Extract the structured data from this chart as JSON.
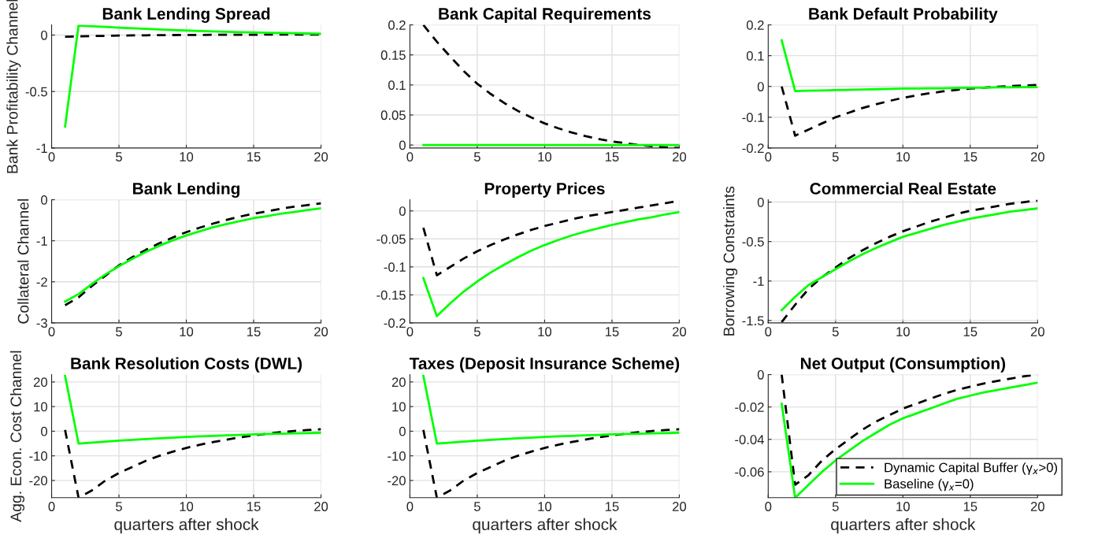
{
  "chart_data": [
    {
      "type": "line",
      "title": "Bank Lending Spread",
      "ylabel": "Bank Profitability Channel",
      "x": [
        1,
        2,
        3,
        4,
        5,
        6,
        7,
        8,
        9,
        10,
        11,
        12,
        13,
        14,
        15,
        16,
        17,
        18,
        19,
        20
      ],
      "xlim": [
        0,
        20
      ],
      "xticks": [
        0,
        5,
        10,
        15,
        20
      ],
      "ylim": [
        -1,
        0.09
      ],
      "yticks": [
        -1,
        -0.5,
        0
      ],
      "grid": true,
      "legend": false,
      "series": [
        {
          "color": "#000000",
          "line_style": "dashed",
          "values": [
            -0.015,
            -0.012,
            -0.009,
            -0.007,
            -0.005,
            -0.003,
            -0.002,
            -0.001,
            0,
            0.001,
            0.001,
            0.002,
            0.002,
            0.003,
            0.003,
            0.004,
            0.004,
            0.004,
            0.005,
            0.005
          ]
        },
        {
          "color": "#00ff00",
          "line_style": "solid",
          "values": [
            -0.81,
            0.085,
            0.078,
            0.072,
            0.066,
            0.06,
            0.055,
            0.05,
            0.045,
            0.04,
            0.036,
            0.032,
            0.029,
            0.026,
            0.023,
            0.02,
            0.018,
            0.016,
            0.014,
            0.012
          ]
        }
      ]
    },
    {
      "type": "line",
      "title": "Bank Capital Requirements",
      "x": [
        1,
        2,
        3,
        4,
        5,
        6,
        7,
        8,
        9,
        10,
        11,
        12,
        13,
        14,
        15,
        16,
        17,
        18,
        19,
        20
      ],
      "xlim": [
        0,
        20
      ],
      "xticks": [
        0,
        5,
        10,
        15,
        20
      ],
      "ylim": [
        -0.005,
        0.2
      ],
      "yticks": [
        0,
        0.05,
        0.1,
        0.15,
        0.2
      ],
      "grid": true,
      "legend": false,
      "series": [
        {
          "color": "#000000",
          "line_style": "dashed",
          "values": [
            0.2,
            0.172,
            0.147,
            0.123,
            0.102,
            0.085,
            0.07,
            0.057,
            0.046,
            0.036,
            0.028,
            0.021,
            0.015,
            0.01,
            0.006,
            0.003,
            0.0,
            -0.002,
            -0.004,
            -0.005
          ]
        },
        {
          "color": "#00ff00",
          "line_style": "solid",
          "values": [
            0,
            0,
            0,
            0,
            0,
            0,
            0,
            0,
            0,
            0,
            0,
            0,
            0,
            0,
            0,
            0,
            0,
            0,
            0,
            0
          ]
        }
      ]
    },
    {
      "type": "line",
      "title": "Bank Default Probability",
      "x": [
        1,
        2,
        3,
        4,
        5,
        6,
        7,
        8,
        9,
        10,
        11,
        12,
        13,
        14,
        15,
        16,
        17,
        18,
        19,
        20
      ],
      "xlim": [
        0,
        20
      ],
      "xticks": [
        0,
        5,
        10,
        15,
        20
      ],
      "ylim": [
        -0.2,
        0.2
      ],
      "yticks": [
        -0.2,
        -0.1,
        0,
        0.1,
        0.2
      ],
      "grid": true,
      "legend": false,
      "series": [
        {
          "color": "#000000",
          "line_style": "dashed",
          "values": [
            0.0,
            -0.16,
            -0.14,
            -0.12,
            -0.1,
            -0.085,
            -0.07,
            -0.058,
            -0.047,
            -0.037,
            -0.029,
            -0.022,
            -0.016,
            -0.011,
            -0.007,
            -0.004,
            -0.001,
            0.001,
            0.003,
            0.005
          ]
        },
        {
          "color": "#00ff00",
          "line_style": "solid",
          "values": [
            0.15,
            -0.015,
            -0.014,
            -0.013,
            -0.012,
            -0.011,
            -0.01,
            -0.009,
            -0.008,
            -0.007,
            -0.007,
            -0.006,
            -0.006,
            -0.005,
            -0.004,
            -0.004,
            -0.003,
            -0.003,
            -0.002,
            -0.002
          ]
        }
      ]
    },
    {
      "type": "line",
      "title": "Bank Lending",
      "ylabel": "Collateral Channel",
      "x": [
        1,
        2,
        3,
        4,
        5,
        6,
        7,
        8,
        9,
        10,
        11,
        12,
        13,
        14,
        15,
        16,
        17,
        18,
        19,
        20
      ],
      "xlim": [
        0,
        20
      ],
      "xticks": [
        0,
        5,
        10,
        15,
        20
      ],
      "ylim": [
        -3,
        0
      ],
      "yticks": [
        -3,
        -2,
        -1,
        0
      ],
      "grid": true,
      "legend": false,
      "series": [
        {
          "color": "#000000",
          "line_style": "dashed",
          "values": [
            -2.57,
            -2.38,
            -2.1,
            -1.85,
            -1.6,
            -1.4,
            -1.22,
            -1.06,
            -0.92,
            -0.79,
            -0.68,
            -0.58,
            -0.49,
            -0.41,
            -0.34,
            -0.28,
            -0.22,
            -0.17,
            -0.13,
            -0.09
          ]
        },
        {
          "color": "#00ff00",
          "line_style": "solid",
          "values": [
            -2.48,
            -2.3,
            -2.05,
            -1.82,
            -1.62,
            -1.44,
            -1.27,
            -1.12,
            -0.99,
            -0.87,
            -0.77,
            -0.67,
            -0.59,
            -0.52,
            -0.45,
            -0.4,
            -0.34,
            -0.3,
            -0.25,
            -0.21
          ]
        }
      ]
    },
    {
      "type": "line",
      "title": "Property Prices",
      "x": [
        1,
        2,
        3,
        4,
        5,
        6,
        7,
        8,
        9,
        10,
        11,
        12,
        13,
        14,
        15,
        16,
        17,
        18,
        19,
        20
      ],
      "xlim": [
        0,
        20
      ],
      "xticks": [
        0,
        5,
        10,
        15,
        20
      ],
      "ylim": [
        -0.2,
        0.02
      ],
      "yticks": [
        -0.2,
        -0.15,
        -0.1,
        -0.05,
        0
      ],
      "grid": true,
      "legend": false,
      "series": [
        {
          "color": "#000000",
          "line_style": "dashed",
          "values": [
            -0.03,
            -0.115,
            -0.1,
            -0.085,
            -0.072,
            -0.061,
            -0.051,
            -0.042,
            -0.034,
            -0.027,
            -0.021,
            -0.015,
            -0.01,
            -0.006,
            -0.002,
            0.002,
            0.006,
            0.01,
            0.014,
            0.018
          ]
        },
        {
          "color": "#00ff00",
          "line_style": "solid",
          "values": [
            -0.12,
            -0.188,
            -0.165,
            -0.144,
            -0.126,
            -0.11,
            -0.096,
            -0.083,
            -0.071,
            -0.061,
            -0.052,
            -0.044,
            -0.037,
            -0.031,
            -0.025,
            -0.02,
            -0.015,
            -0.011,
            -0.006,
            -0.002
          ]
        }
      ]
    },
    {
      "type": "line",
      "title": "Commercial Real Estate",
      "ylabel": "Borrowing Constraints",
      "x": [
        1,
        2,
        3,
        4,
        5,
        6,
        7,
        8,
        9,
        10,
        11,
        12,
        13,
        14,
        15,
        16,
        17,
        18,
        19,
        20
      ],
      "xlim": [
        0,
        20
      ],
      "xticks": [
        0,
        5,
        10,
        15,
        20
      ],
      "ylim": [
        -1.53,
        0.03
      ],
      "yticks": [
        -1.5,
        -1,
        -0.5,
        0
      ],
      "grid": true,
      "legend": false,
      "series": [
        {
          "color": "#000000",
          "line_style": "dashed",
          "values": [
            -1.52,
            -1.3,
            -1.1,
            -0.95,
            -0.83,
            -0.71,
            -0.61,
            -0.52,
            -0.44,
            -0.37,
            -0.31,
            -0.25,
            -0.2,
            -0.15,
            -0.11,
            -0.08,
            -0.05,
            -0.02,
            0.0,
            0.02
          ]
        },
        {
          "color": "#00ff00",
          "line_style": "solid",
          "values": [
            -1.37,
            -1.2,
            -1.05,
            -0.95,
            -0.85,
            -0.75,
            -0.66,
            -0.58,
            -0.51,
            -0.44,
            -0.39,
            -0.34,
            -0.29,
            -0.25,
            -0.21,
            -0.18,
            -0.15,
            -0.12,
            -0.1,
            -0.08
          ]
        }
      ]
    },
    {
      "type": "line",
      "title": "Bank Resolution Costs (DWL)",
      "xlabel": "quarters after shock",
      "ylabel": "Agg. Econ. Cost Channel",
      "x": [
        1,
        2,
        3,
        4,
        5,
        6,
        7,
        8,
        9,
        10,
        11,
        12,
        13,
        14,
        15,
        16,
        17,
        18,
        19,
        20
      ],
      "xlim": [
        0,
        20
      ],
      "xticks": [
        0,
        5,
        10,
        15,
        20
      ],
      "ylim": [
        -27,
        23
      ],
      "yticks": [
        -20,
        -10,
        0,
        10,
        20
      ],
      "grid": true,
      "legend": false,
      "series": [
        {
          "color": "#000000",
          "line_style": "dashed",
          "values": [
            0.5,
            -27,
            -24,
            -20,
            -17,
            -14.5,
            -12,
            -10,
            -8.3,
            -6.8,
            -5.5,
            -4.4,
            -3.4,
            -2.5,
            -1.7,
            -1.0,
            -0.4,
            0.1,
            0.5,
            0.8
          ]
        },
        {
          "color": "#00ff00",
          "line_style": "solid",
          "values": [
            22.5,
            -5,
            -4.6,
            -4.2,
            -3.8,
            -3.5,
            -3.2,
            -2.9,
            -2.6,
            -2.3,
            -2.1,
            -1.9,
            -1.7,
            -1.5,
            -1.3,
            -1.1,
            -1.0,
            -0.9,
            -0.8,
            -0.6
          ]
        }
      ]
    },
    {
      "type": "line",
      "title": "Taxes (Deposit Insurance Scheme)",
      "xlabel": "quarters after shock",
      "x": [
        1,
        2,
        3,
        4,
        5,
        6,
        7,
        8,
        9,
        10,
        11,
        12,
        13,
        14,
        15,
        16,
        17,
        18,
        19,
        20
      ],
      "xlim": [
        0,
        20
      ],
      "xticks": [
        0,
        5,
        10,
        15,
        20
      ],
      "ylim": [
        -27,
        23
      ],
      "yticks": [
        -20,
        -10,
        0,
        10,
        20
      ],
      "grid": true,
      "legend": false,
      "series": [
        {
          "color": "#000000",
          "line_style": "dashed",
          "values": [
            0.5,
            -27,
            -24,
            -20,
            -17,
            -14.5,
            -12,
            -10,
            -8.3,
            -6.8,
            -5.5,
            -4.4,
            -3.4,
            -2.5,
            -1.7,
            -1.0,
            -0.4,
            0.1,
            0.5,
            0.8
          ]
        },
        {
          "color": "#00ff00",
          "line_style": "solid",
          "values": [
            22.5,
            -5,
            -4.6,
            -4.2,
            -3.8,
            -3.5,
            -3.2,
            -2.9,
            -2.6,
            -2.3,
            -2.1,
            -1.9,
            -1.7,
            -1.5,
            -1.3,
            -1.1,
            -1.0,
            -0.9,
            -0.8,
            -0.6
          ]
        }
      ]
    },
    {
      "type": "line",
      "title": "Net Output (Consumption)",
      "xlabel": "quarters after shock",
      "x": [
        1,
        2,
        3,
        4,
        5,
        6,
        7,
        8,
        9,
        10,
        11,
        12,
        13,
        14,
        15,
        16,
        17,
        18,
        19,
        20
      ],
      "xlim": [
        0,
        20
      ],
      "xticks": [
        0,
        5,
        10,
        15,
        20
      ],
      "ylim": [
        -0.076,
        0
      ],
      "yticks": [
        -0.06,
        -0.04,
        -0.02,
        0
      ],
      "grid": true,
      "legend": "bottom right",
      "series": [
        {
          "name": "Dynamic Capital Buffer (γ$_{x}$>0)",
          "color": "#000000",
          "line_style": "dashed",
          "values": [
            0,
            -0.068,
            -0.062,
            -0.053,
            -0.046,
            -0.04,
            -0.034,
            -0.029,
            -0.025,
            -0.021,
            -0.018,
            -0.015,
            -0.012,
            -0.0095,
            -0.0075,
            -0.0055,
            -0.004,
            -0.0025,
            -0.001,
            0
          ]
        },
        {
          "name": "Baseline (γ$_{x}$=0)",
          "color": "#00ff00",
          "line_style": "solid",
          "values": [
            -0.018,
            -0.076,
            -0.068,
            -0.06,
            -0.053,
            -0.047,
            -0.041,
            -0.036,
            -0.031,
            -0.027,
            -0.024,
            -0.021,
            -0.018,
            -0.015,
            -0.013,
            -0.011,
            -0.0095,
            -0.008,
            -0.0065,
            -0.005
          ]
        }
      ]
    }
  ]
}
